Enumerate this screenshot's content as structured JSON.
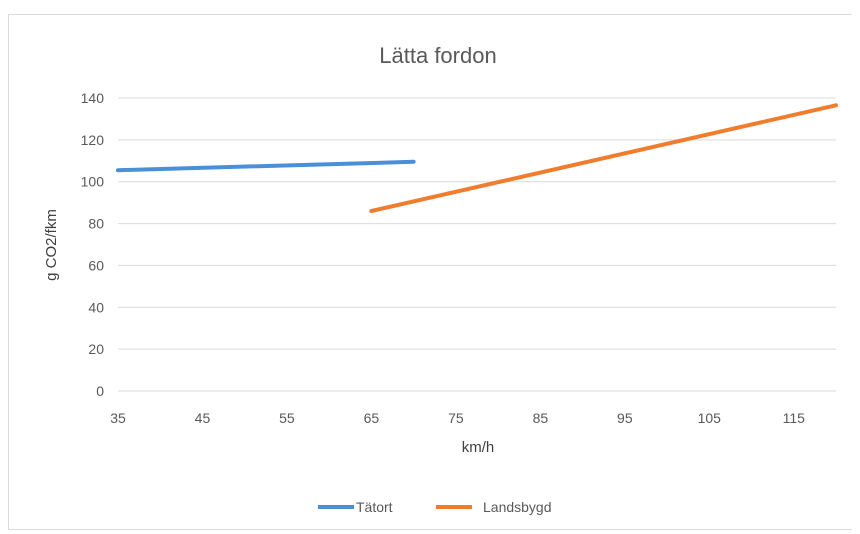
{
  "chart_data": {
    "type": "line",
    "title": "Lätta fordon",
    "xlabel": "km/h",
    "ylabel": "g CO2/fkm",
    "xlim": [
      35,
      120
    ],
    "ylim": [
      0,
      140
    ],
    "x_ticks": [
      "35",
      "45",
      "55",
      "65",
      "75",
      "85",
      "95",
      "105",
      "115"
    ],
    "y_ticks": [
      "0",
      "20",
      "40",
      "60",
      "80",
      "100",
      "120",
      "140"
    ],
    "grid": true,
    "legend_position": "bottom",
    "series": [
      {
        "name": "Tätort",
        "color": "#4a90d9",
        "x": [
          35,
          70
        ],
        "y": [
          105.5,
          109.5
        ]
      },
      {
        "name": "Landsbygd",
        "color": "#f07d2e",
        "x": [
          65,
          120
        ],
        "y": [
          86,
          136.5
        ]
      }
    ]
  }
}
